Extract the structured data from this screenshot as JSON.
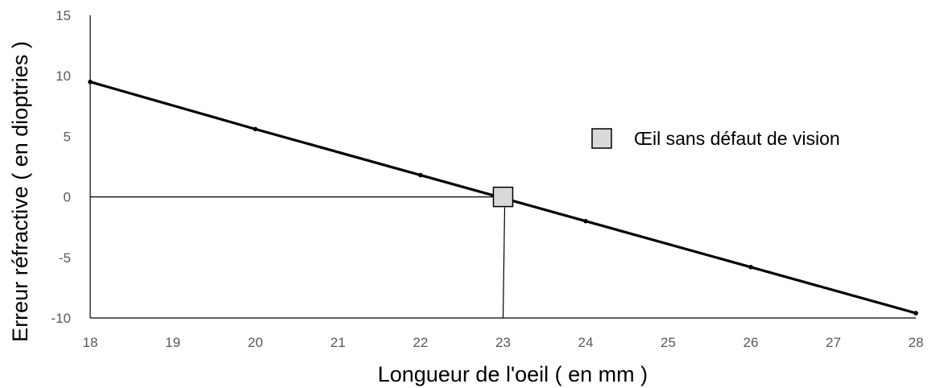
{
  "chart_data": {
    "type": "line",
    "xlabel": "Longueur de l'oeil ( en mm )",
    "ylabel": "Erreur réfractive ( en dioptries )",
    "xlim": [
      18,
      28
    ],
    "ylim": [
      -10,
      15
    ],
    "xticks": [
      18,
      19,
      20,
      21,
      22,
      23,
      24,
      25,
      26,
      27,
      28
    ],
    "yticks": [
      -10,
      -5,
      0,
      5,
      10,
      15
    ],
    "series": [
      {
        "x": [
          18,
          20,
          22,
          24,
          26,
          28
        ],
        "y": [
          9.5,
          5.6,
          1.8,
          -2.0,
          -5.8,
          -9.6
        ],
        "color": "#000000"
      }
    ],
    "marker": {
      "x": 23,
      "y": 0,
      "color": "#d9d9d9"
    },
    "legend": {
      "label": "Œil sans défaut de vision",
      "position": "right"
    },
    "reference_lines": {
      "horizontal_at": 0,
      "vertical_at": 23
    }
  }
}
